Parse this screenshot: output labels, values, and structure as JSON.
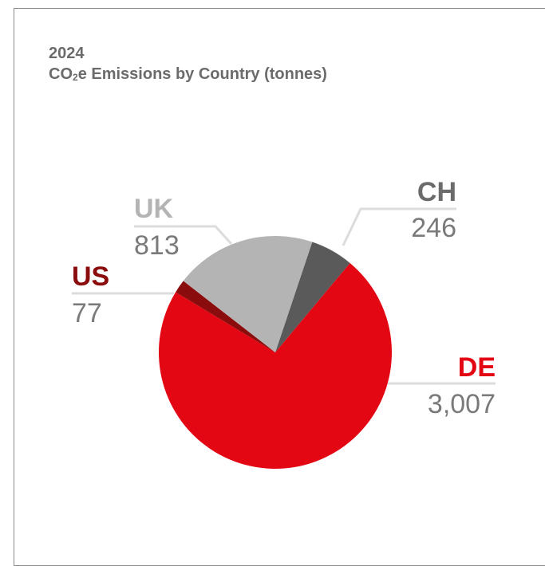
{
  "header": {
    "year": "2024",
    "title_prefix": "CO",
    "title_subscript": "2",
    "title_suffix": "e Emissions by Country (tonnes)"
  },
  "chart_data": {
    "type": "pie",
    "title": "CO₂e Emissions by Country (tonnes)",
    "subtitle": "2024",
    "unit": "tonnes",
    "slices": [
      {
        "label": "CH",
        "value": 246,
        "value_label": "246",
        "color": "#5a5a5a",
        "label_color": "#6b6b6b"
      },
      {
        "label": "DE",
        "value": 3007,
        "value_label": "3,007",
        "color": "#e30613",
        "label_color": "#e30613"
      },
      {
        "label": "US",
        "value": 77,
        "value_label": "77",
        "color": "#8b0c0c",
        "label_color": "#8b0c0c"
      },
      {
        "label": "UK",
        "value": 813,
        "value_label": "813",
        "color": "#b4b4b4",
        "label_color": "#b4b4b4"
      }
    ],
    "start_angle_deg": 18.5,
    "direction": "clockwise",
    "leader_color": "#dcdcdc",
    "value_label_color": "#7a7a7a"
  }
}
